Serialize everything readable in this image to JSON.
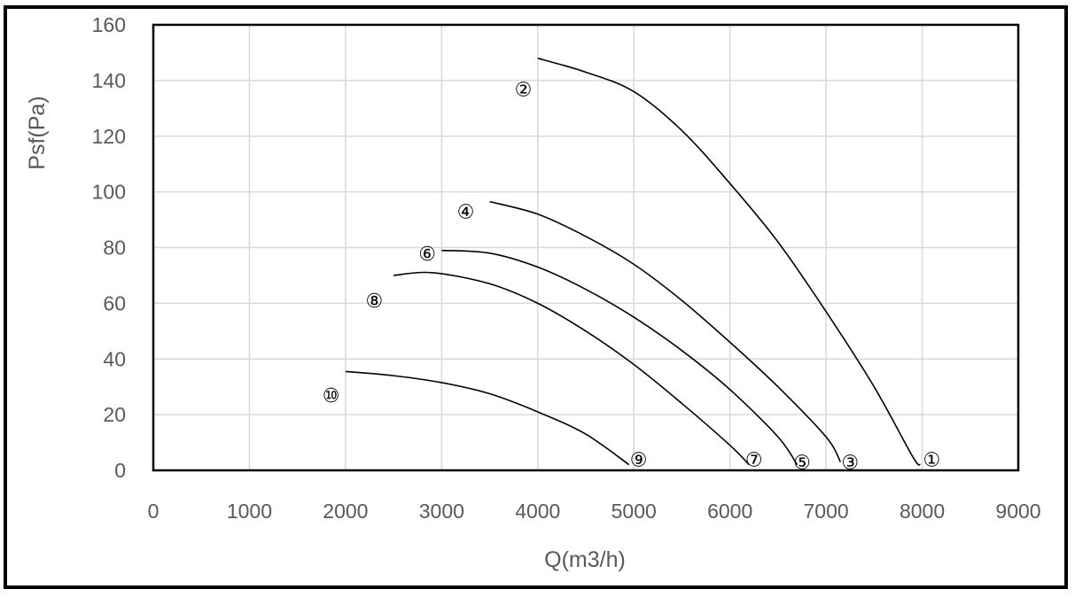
{
  "chart_data": {
    "type": "line",
    "title": "",
    "xlabel": "Q(m3/h)",
    "ylabel": "Psf(Pa)",
    "xlim": [
      0,
      9000
    ],
    "ylim": [
      0,
      160
    ],
    "xticks": [
      "0",
      "1000",
      "2000",
      "3000",
      "4000",
      "5000",
      "6000",
      "7000",
      "8000",
      "9000"
    ],
    "yticks": [
      "0",
      "20",
      "40",
      "60",
      "80",
      "100",
      "120",
      "140",
      "160"
    ],
    "grid": true,
    "legend": "none",
    "series": [
      {
        "name": "①-②",
        "points": [
          [
            4000,
            148
          ],
          [
            4500,
            143
          ],
          [
            5000,
            136
          ],
          [
            5500,
            122
          ],
          [
            6000,
            103
          ],
          [
            6500,
            82
          ],
          [
            7000,
            57
          ],
          [
            7500,
            30
          ],
          [
            7900,
            5
          ],
          [
            7980,
            2
          ]
        ]
      },
      {
        "name": "③-④",
        "points": [
          [
            3500,
            96.5
          ],
          [
            4000,
            92
          ],
          [
            4500,
            84
          ],
          [
            5000,
            74
          ],
          [
            5500,
            61
          ],
          [
            6000,
            46
          ],
          [
            6500,
            30
          ],
          [
            7000,
            12
          ],
          [
            7150,
            3
          ]
        ]
      },
      {
        "name": "⑤-⑥",
        "points": [
          [
            3000,
            79
          ],
          [
            3500,
            78
          ],
          [
            4000,
            73
          ],
          [
            4500,
            65
          ],
          [
            5000,
            55
          ],
          [
            5500,
            43
          ],
          [
            6000,
            29
          ],
          [
            6500,
            12
          ],
          [
            6700,
            2
          ]
        ]
      },
      {
        "name": "⑦-⑧",
        "points": [
          [
            2500,
            70
          ],
          [
            2900,
            71
          ],
          [
            3500,
            67
          ],
          [
            4000,
            60
          ],
          [
            4500,
            50
          ],
          [
            5000,
            38
          ],
          [
            5500,
            24
          ],
          [
            6000,
            9
          ],
          [
            6200,
            2
          ]
        ]
      },
      {
        "name": "⑨-⑩",
        "points": [
          [
            2000,
            35.5
          ],
          [
            2500,
            34
          ],
          [
            3000,
            31.5
          ],
          [
            3500,
            27.5
          ],
          [
            4000,
            21
          ],
          [
            4500,
            13
          ],
          [
            4950,
            2
          ]
        ]
      }
    ],
    "annotations": [
      {
        "text": "①",
        "x": 8100,
        "y": 4
      },
      {
        "text": "②",
        "x": 3850,
        "y": 137
      },
      {
        "text": "③",
        "x": 7250,
        "y": 3
      },
      {
        "text": "④",
        "x": 3250,
        "y": 93
      },
      {
        "text": "⑤",
        "x": 6750,
        "y": 3
      },
      {
        "text": "⑥",
        "x": 2850,
        "y": 78
      },
      {
        "text": "⑦",
        "x": 6250,
        "y": 4
      },
      {
        "text": "⑧",
        "x": 2300,
        "y": 61
      },
      {
        "text": "⑨",
        "x": 5050,
        "y": 4
      },
      {
        "text": "⑩",
        "x": 1850,
        "y": 27
      }
    ],
    "colors": {
      "line": "#000000",
      "grid": "#d9d9d9",
      "text": "#595959"
    }
  }
}
